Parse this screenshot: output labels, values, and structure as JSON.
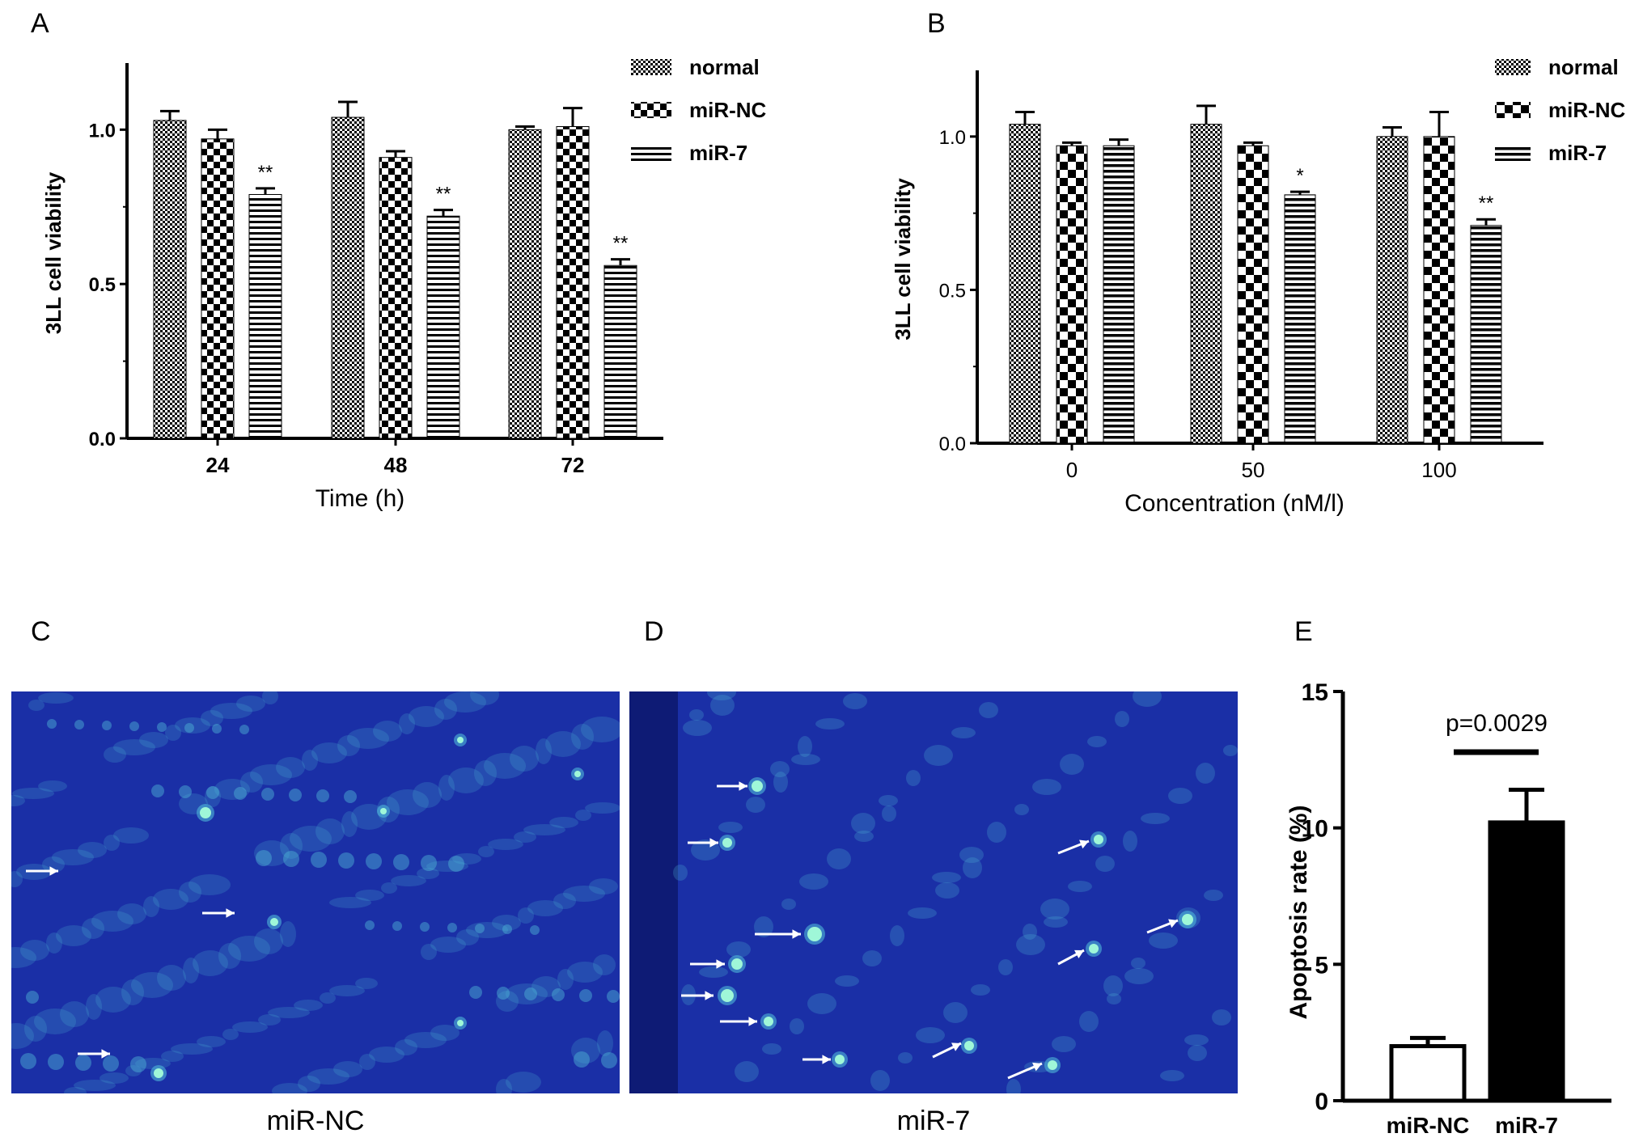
{
  "panels": {
    "A": "A",
    "B": "B",
    "C": "C",
    "D": "D",
    "E": "E"
  },
  "captions": {
    "C": "miR-NC",
    "D": "miR-7"
  },
  "legend": {
    "normal": "normal",
    "nc": "miR-NC",
    "mir7": "miR-7"
  },
  "colors": {
    "fluor_bg": "#1a2fa6",
    "fluor_cell": "#4fb8d8",
    "bright_cell": "#9ff7d8",
    "bar_black": "#000000"
  },
  "chart_data": [
    {
      "panel": "A",
      "type": "bar",
      "xlabel": "Time (h)",
      "ylabel": "3LL cell viability",
      "ylim": [
        0,
        1.2
      ],
      "yticks": [
        "0.0",
        "0.5",
        "1.0"
      ],
      "categories": [
        "24",
        "48",
        "72"
      ],
      "series": [
        {
          "name": "normal",
          "values": [
            1.03,
            1.04,
            1.0
          ],
          "errors": [
            0.03,
            0.05,
            0.01
          ]
        },
        {
          "name": "miR-NC",
          "values": [
            0.97,
            0.91,
            1.01
          ],
          "errors": [
            0.03,
            0.02,
            0.06
          ]
        },
        {
          "name": "miR-7",
          "values": [
            0.79,
            0.72,
            0.56
          ],
          "errors": [
            0.02,
            0.02,
            0.02
          ]
        }
      ],
      "annotations": [
        "**",
        "**",
        "**"
      ],
      "legend_position": "top-right"
    },
    {
      "panel": "B",
      "type": "bar",
      "xlabel": "Concentration (nM/l)",
      "ylabel": "3LL cell viability",
      "ylim": [
        0,
        1.2
      ],
      "yticks": [
        "0.0",
        "0.5",
        "1.0"
      ],
      "categories": [
        "0",
        "50",
        "100"
      ],
      "series": [
        {
          "name": "normal",
          "values": [
            1.04,
            1.04,
            1.0
          ],
          "errors": [
            0.04,
            0.06,
            0.03
          ]
        },
        {
          "name": "miR-NC",
          "values": [
            0.97,
            0.97,
            1.0
          ],
          "errors": [
            0.01,
            0.01,
            0.08
          ]
        },
        {
          "name": "miR-7",
          "values": [
            0.97,
            0.81,
            0.71
          ],
          "errors": [
            0.02,
            0.01,
            0.02
          ]
        }
      ],
      "annotations": [
        "",
        "*",
        "**"
      ],
      "legend_position": "top-right"
    },
    {
      "panel": "E",
      "type": "bar",
      "xlabel": "",
      "ylabel": "Apoptosis rate (%)",
      "ylim": [
        0,
        15
      ],
      "yticks": [
        "0",
        "5",
        "10",
        "15"
      ],
      "categories": [
        "miR-NC",
        "miR-7"
      ],
      "values": [
        2.0,
        10.2
      ],
      "errors": [
        0.3,
        1.2
      ],
      "annotation": "p=0.0029"
    }
  ]
}
